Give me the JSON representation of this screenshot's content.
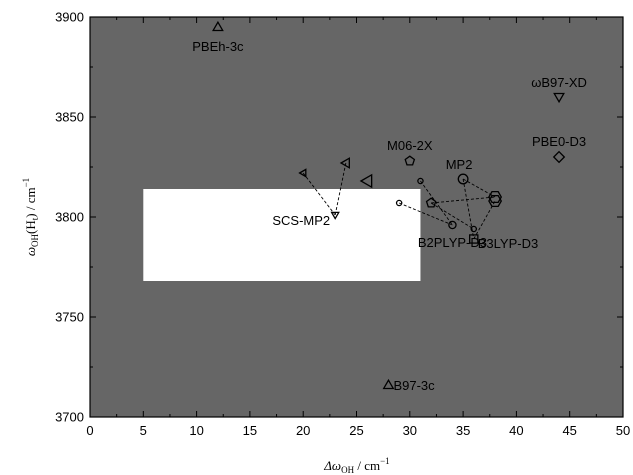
{
  "chart_data": {
    "type": "scatter",
    "title": "",
    "xlabel": "Δω_OH / cm⁻¹",
    "ylabel": "ω_OH(H_t) / cm⁻¹",
    "xlim": [
      0,
      50
    ],
    "ylim": [
      3700,
      3900
    ],
    "x_ticks": [
      0,
      5,
      10,
      15,
      20,
      25,
      30,
      35,
      40,
      45,
      50
    ],
    "y_ticks": [
      3700,
      3750,
      3800,
      3850,
      3900
    ],
    "grid": false,
    "colors": {
      "plot_background": "#666666",
      "marker_stroke": "#000000",
      "inset": "#ffffff"
    },
    "points": [
      {
        "label": "PBEh-3c",
        "x": 12,
        "y": 3895,
        "marker": "triangle-up",
        "size": "medium"
      },
      {
        "label": "ωB97-XD",
        "x": 44,
        "y": 3860,
        "marker": "triangle-down",
        "size": "medium"
      },
      {
        "label": "PBE0-D3",
        "x": 44,
        "y": 3830,
        "marker": "diamond",
        "size": "medium"
      },
      {
        "label": "M06-2X",
        "x": 30,
        "y": 3828,
        "marker": "pentagon",
        "size": "medium"
      },
      {
        "label": "MP2",
        "x": 35,
        "y": 3819,
        "marker": "circle",
        "size": "medium"
      },
      {
        "label": "SCS-MP2",
        "x": 23,
        "y": 3801,
        "marker": "triangle-down",
        "size": "small"
      },
      {
        "label": "B2PLYP-D3",
        "x": 34,
        "y": 3796,
        "marker": "circle",
        "size": "small"
      },
      {
        "label": "B3LYP-D3",
        "x": 36,
        "y": 3789,
        "marker": "square",
        "size": "medium"
      },
      {
        "label": "B97-3c",
        "x": 28,
        "y": 3716,
        "marker": "triangle-up",
        "size": "medium"
      },
      {
        "label": "",
        "x": 20,
        "y": 3822,
        "marker": "triangle-left",
        "size": "small"
      },
      {
        "label": "",
        "x": 24,
        "y": 3827,
        "marker": "triangle-left",
        "size": "medium"
      },
      {
        "label": "",
        "x": 26,
        "y": 3818,
        "marker": "triangle-left",
        "size": "large"
      },
      {
        "label": "",
        "x": 31,
        "y": 3818,
        "marker": "circle",
        "size": "tiny"
      },
      {
        "label": "",
        "x": 29,
        "y": 3807,
        "marker": "circle",
        "size": "tiny"
      },
      {
        "label": "",
        "x": 36,
        "y": 3794,
        "marker": "circle",
        "size": "tiny"
      },
      {
        "label": "",
        "x": 32,
        "y": 3807,
        "marker": "pentagon",
        "size": "medium"
      },
      {
        "label": "",
        "x": 38,
        "y": 3810,
        "marker": "hexagon",
        "size": "large"
      },
      {
        "label": "",
        "x": 38,
        "y": 3808,
        "marker": "hexagon",
        "size": "large"
      }
    ],
    "connector_lines": [
      {
        "from": [
          20,
          3822
        ],
        "to": [
          23,
          3801
        ]
      },
      {
        "from": [
          24,
          3827
        ],
        "to": [
          23,
          3801
        ]
      },
      {
        "from": [
          31,
          3818
        ],
        "to": [
          34,
          3796
        ]
      },
      {
        "from": [
          29,
          3807
        ],
        "to": [
          34,
          3796
        ]
      },
      {
        "from": [
          32,
          3807
        ],
        "to": [
          36,
          3794
        ]
      },
      {
        "from": [
          32,
          3807
        ],
        "to": [
          38,
          3810
        ]
      },
      {
        "from": [
          35,
          3819
        ],
        "to": [
          38,
          3810
        ]
      },
      {
        "from": [
          35,
          3819
        ],
        "to": [
          36,
          3789
        ]
      },
      {
        "from": [
          36,
          3789
        ],
        "to": [
          38,
          3808
        ]
      }
    ],
    "inset_box": {
      "x_range": [
        5,
        31
      ],
      "y_range": [
        3768,
        3814
      ]
    }
  }
}
